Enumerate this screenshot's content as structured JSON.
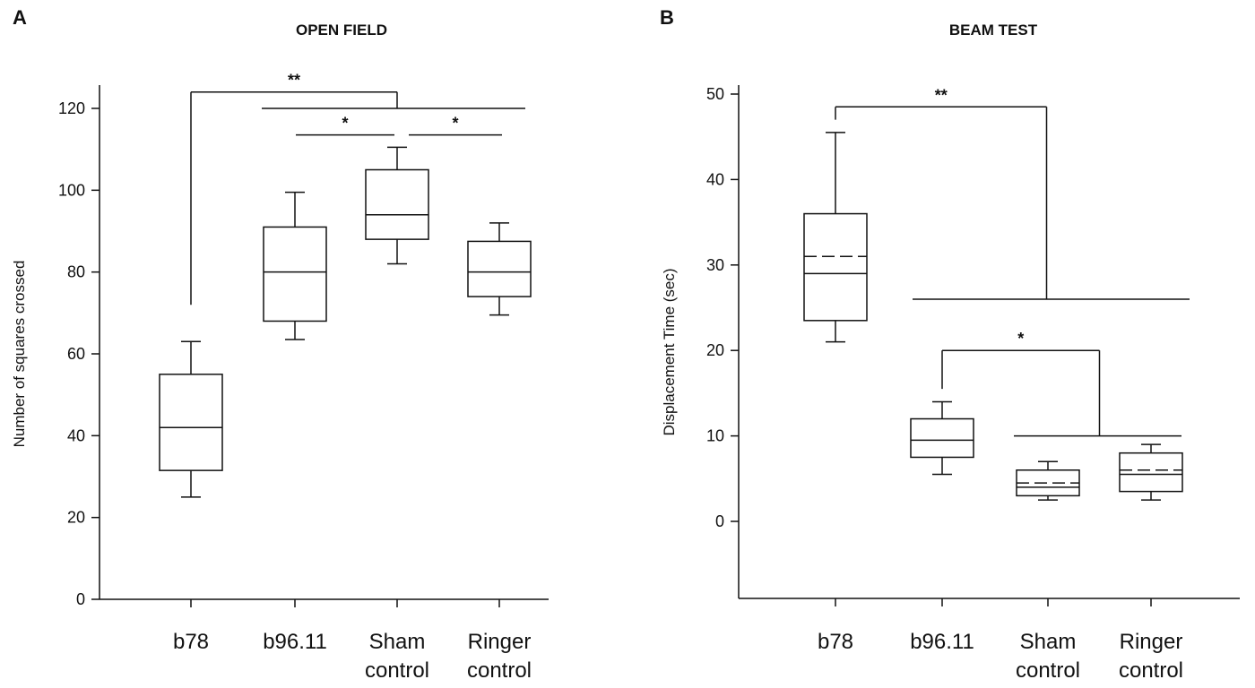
{
  "chart_data": [
    {
      "panel": "A",
      "type": "box",
      "title": "OPEN FIELD",
      "ylabel": "Number of squares crossed",
      "ylim": [
        0,
        120
      ],
      "yticks": [
        0,
        20,
        40,
        60,
        80,
        100,
        120
      ],
      "categories": [
        [
          "b78"
        ],
        [
          "b96.11"
        ],
        [
          "Sham",
          "control"
        ],
        [
          "Ringer",
          "control"
        ]
      ],
      "boxes": [
        {
          "whisker_low": 25,
          "q1": 31.5,
          "median": 42,
          "q3": 55,
          "whisker_high": 63
        },
        {
          "whisker_low": 63.5,
          "q1": 68,
          "median": 80,
          "q3": 91,
          "whisker_high": 99.5
        },
        {
          "whisker_low": 82,
          "q1": 88,
          "median": 94,
          "q3": 105,
          "whisker_high": 110.5
        },
        {
          "whisker_low": 69.5,
          "q1": 74,
          "median": 80,
          "q3": 87.5,
          "whisker_high": 92
        }
      ],
      "significance": [
        {
          "label": "**",
          "from": 0,
          "to_range": [
            1,
            3
          ],
          "y": 124
        },
        {
          "label": "*",
          "from": 1,
          "to": 2,
          "y": 113.5
        },
        {
          "label": "*",
          "from": 2,
          "to": 3,
          "y": 113.5
        }
      ]
    },
    {
      "panel": "B",
      "type": "box",
      "title": "BEAM TEST",
      "ylabel": "Displacement Time (sec)",
      "ylim": [
        -9,
        50
      ],
      "yticks": [
        0,
        10,
        20,
        30,
        40,
        50
      ],
      "categories": [
        [
          "b78"
        ],
        [
          "b96.11"
        ],
        [
          "Sham",
          "control"
        ],
        [
          "Ringer",
          "control"
        ]
      ],
      "boxes": [
        {
          "whisker_low": 21,
          "q1": 23.5,
          "median": 29,
          "mean": 31,
          "q3": 36,
          "whisker_high": 45.5
        },
        {
          "whisker_low": 5.5,
          "q1": 7.5,
          "median": 9.5,
          "q3": 12,
          "whisker_high": 14
        },
        {
          "whisker_low": 2.5,
          "q1": 3,
          "median": 4,
          "mean": 4.5,
          "q3": 6,
          "whisker_high": 7
        },
        {
          "whisker_low": 2.5,
          "q1": 3.5,
          "median": 5.5,
          "mean": 6,
          "q3": 8,
          "whisker_high": 9
        }
      ],
      "significance": [
        {
          "label": "**",
          "from": 0,
          "to_range": [
            1,
            3
          ],
          "y": 48.5
        },
        {
          "label": "*",
          "from": 1,
          "to_range": [
            2,
            3
          ],
          "y": 20
        }
      ]
    }
  ]
}
